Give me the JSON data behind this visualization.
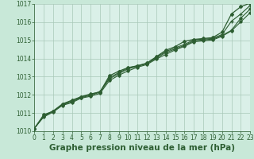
{
  "background_color": "#c8e8d8",
  "plot_bg_color": "#daf0e8",
  "grid_color": "#a8c8b8",
  "line_color": "#2d5e32",
  "ylim": [
    1010,
    1017
  ],
  "xlim": [
    0,
    23
  ],
  "yticks": [
    1010,
    1011,
    1012,
    1013,
    1014,
    1015,
    1016,
    1017
  ],
  "xticks": [
    0,
    1,
    2,
    3,
    4,
    5,
    6,
    7,
    8,
    9,
    10,
    11,
    12,
    13,
    14,
    15,
    16,
    17,
    18,
    19,
    20,
    21,
    22,
    23
  ],
  "xlabel": "Graphe pression niveau de la mer (hPa)",
  "xlabel_fontsize": 7.5,
  "tick_fontsize": 5.5,
  "series": [
    [
      1010.15,
      1010.9,
      1011.1,
      1011.5,
      1011.7,
      1011.9,
      1012.05,
      1012.15,
      1013.05,
      1013.3,
      1013.5,
      1013.6,
      1013.75,
      1014.1,
      1014.45,
      1014.65,
      1014.95,
      1015.05,
      1015.1,
      1015.15,
      1015.45,
      1016.45,
      1016.85,
      1017.05
    ],
    [
      1010.15,
      1010.82,
      1011.1,
      1011.48,
      1011.68,
      1011.88,
      1012.02,
      1012.18,
      1012.95,
      1013.22,
      1013.48,
      1013.6,
      1013.73,
      1014.07,
      1014.38,
      1014.58,
      1014.78,
      1015.02,
      1015.07,
      1015.1,
      1015.32,
      1016.05,
      1016.45,
      1016.92
    ],
    [
      1010.15,
      1010.85,
      1011.1,
      1011.45,
      1011.62,
      1011.85,
      1011.97,
      1012.15,
      1012.88,
      1013.17,
      1013.43,
      1013.57,
      1013.72,
      1014.02,
      1014.32,
      1014.52,
      1014.72,
      1014.97,
      1015.02,
      1015.07,
      1015.27,
      1015.55,
      1016.22,
      1016.72
    ],
    [
      1010.15,
      1010.78,
      1011.05,
      1011.42,
      1011.57,
      1011.82,
      1011.92,
      1012.08,
      1012.78,
      1013.08,
      1013.32,
      1013.52,
      1013.67,
      1013.97,
      1014.22,
      1014.47,
      1014.67,
      1014.92,
      1014.97,
      1015.02,
      1015.22,
      1015.52,
      1016.02,
      1016.52
    ]
  ]
}
